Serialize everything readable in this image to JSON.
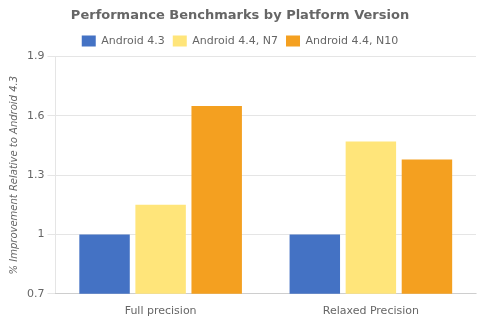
{
  "chart_data": {
    "type": "bar",
    "title": "Performance Benchmarks by Platform Version",
    "ylabel": "% Improvement Relative to Android 4.3",
    "categories": [
      "Full precision",
      "Relaxed Precision"
    ],
    "series": [
      {
        "name": "Android 4.3",
        "color": "#4472C4",
        "values": [
          1.0,
          1.0
        ]
      },
      {
        "name": "Android 4.4, N7",
        "color": "#FFE57A",
        "values": [
          1.15,
          1.47
        ]
      },
      {
        "name": "Android 4.4, N10",
        "color": "#F4A020",
        "values": [
          1.65,
          1.38
        ]
      }
    ],
    "ylim": [
      0.7,
      1.9
    ],
    "yticks": [
      0.7,
      1,
      1.3,
      1.6,
      1.9
    ],
    "grid": true,
    "legend": "top"
  }
}
